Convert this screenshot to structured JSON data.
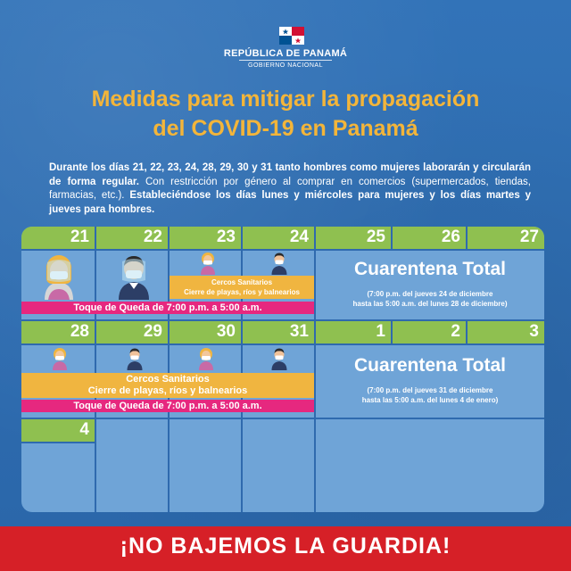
{
  "header": {
    "republic": "REPÚBLICA DE PANAMÁ",
    "government": "GOBIERNO NACIONAL"
  },
  "title": {
    "line1": "Medidas para mitigar la propagación",
    "line2": "del COVID-19 en Panamá"
  },
  "intro": {
    "bold1": "Durante los días 21, 22, 23, 24, 28, 29, 30 y 31 tanto hombres como mujeres laborarán y circularán de forma regular.",
    "normal": " Con restricción por género al comprar en comercios (supermercados, tiendas, farmacias, etc.). ",
    "bold2": "Estableciéndose los días lunes y miércoles para mujeres y los días martes y jueves para hombres."
  },
  "calendar": {
    "week1": {
      "days": [
        "21",
        "22",
        "23",
        "24",
        "25",
        "26",
        "27"
      ],
      "cercos_title": "Cercos Sanitarios",
      "cercos_sub": "Cierre de playas, ríos y balnearios",
      "curfew": "Toque de Queda de 7:00 p.m. a 5:00 a.m.",
      "quarantine_title": "Cuarentena Total",
      "quarantine_line1": "(7:00 p.m. del jueves 24 de diciembre",
      "quarantine_line2": "hasta las 5:00 a.m. del lunes 28 de diciembre)"
    },
    "week2": {
      "days": [
        "28",
        "29",
        "30",
        "31",
        "1",
        "2",
        "3"
      ],
      "cercos_title": "Cercos Sanitarios",
      "cercos_sub": "Cierre de playas, ríos y balnearios",
      "curfew": "Toque de Queda de 7:00 p.m. a 5:00 a.m.",
      "quarantine_title": "Cuarentena Total",
      "quarantine_line1": "(7:00 p.m. del jueves 31 de diciembre",
      "quarantine_line2": "hasta las 5:00 a.m. del lunes 4 de enero)"
    },
    "week3": {
      "days": [
        "4"
      ]
    }
  },
  "footer": {
    "slogan": "¡NO BAJEMOS LA GUARDIA!"
  },
  "colors": {
    "background": "#2d6bb0",
    "title": "#f3b53a",
    "day_header": "#8fc050",
    "curfew": "#e6287f",
    "cercos": "#f0b540",
    "footer": "#d62027"
  }
}
